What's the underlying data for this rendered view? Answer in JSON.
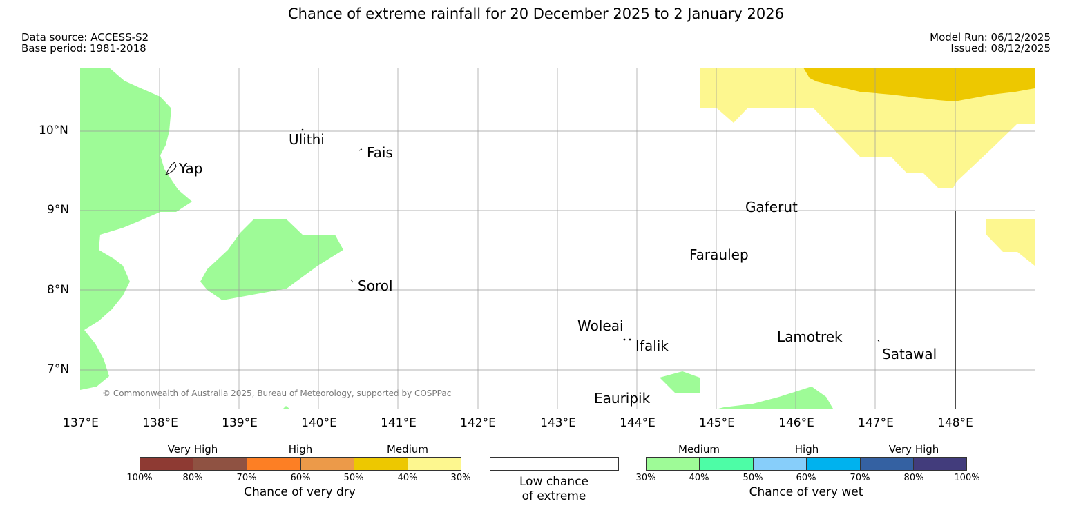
{
  "title": "Chance of extreme rainfall for 20 December 2025 to 2 January 2026",
  "header": {
    "data_source": "Data source: ACCESS-S2",
    "base_period": "Base period: 1981-2018",
    "model_run": "Model Run: 06/12/2025",
    "issued": "Issued: 08/12/2025"
  },
  "map": {
    "lat_labels": [
      "10°N",
      "9°N",
      "8°N",
      "7°N"
    ],
    "lon_labels": [
      "137°E",
      "138°E",
      "139°E",
      "140°E",
      "141°E",
      "142°E",
      "143°E",
      "144°E",
      "145°E",
      "146°E",
      "147°E",
      "148°E"
    ],
    "places": {
      "yap": "Yap",
      "ulithi": "Ulithi",
      "fais": "Fais",
      "sorol": "Sorol",
      "gaferut": "Gaferut",
      "faraulep": "Faraulep",
      "woleai": "Woleai",
      "ifalik": "Ifalik",
      "lamotrek": "Lamotrek",
      "satawal": "Satawal",
      "eauripik": "Eauripik"
    },
    "copyright": "© Commonwealth of Australia 2025, Bureau of Meteorology, supported by COSPPac",
    "colors": {
      "wet_medium_30_40": "#9efb97",
      "dry_medium_30_40": "#fdf78f",
      "dry_medium_40_50": "#edc800"
    }
  },
  "legend": {
    "dry": {
      "categories": [
        "Very High",
        "High",
        "Medium"
      ],
      "percent_labels": [
        "100%",
        "80%",
        "70%",
        "60%",
        "50%",
        "40%",
        "30%"
      ],
      "colors": [
        "#8e3a33",
        "#8f5242",
        "#fd7f24",
        "#ec9a49",
        "#edc800",
        "#fdf78f"
      ],
      "label": "Chance of very dry"
    },
    "low": {
      "label": "Low chance\nof extreme",
      "color": "#ffffff"
    },
    "wet": {
      "categories": [
        "Medium",
        "High",
        "Very High"
      ],
      "percent_labels": [
        "30%",
        "40%",
        "50%",
        "60%",
        "70%",
        "80%",
        "100%"
      ],
      "colors": [
        "#9efb97",
        "#4dfda6",
        "#87cefa",
        "#00b2ee",
        "#3461a2",
        "#423c7c"
      ],
      "label": "Chance of very wet"
    }
  }
}
